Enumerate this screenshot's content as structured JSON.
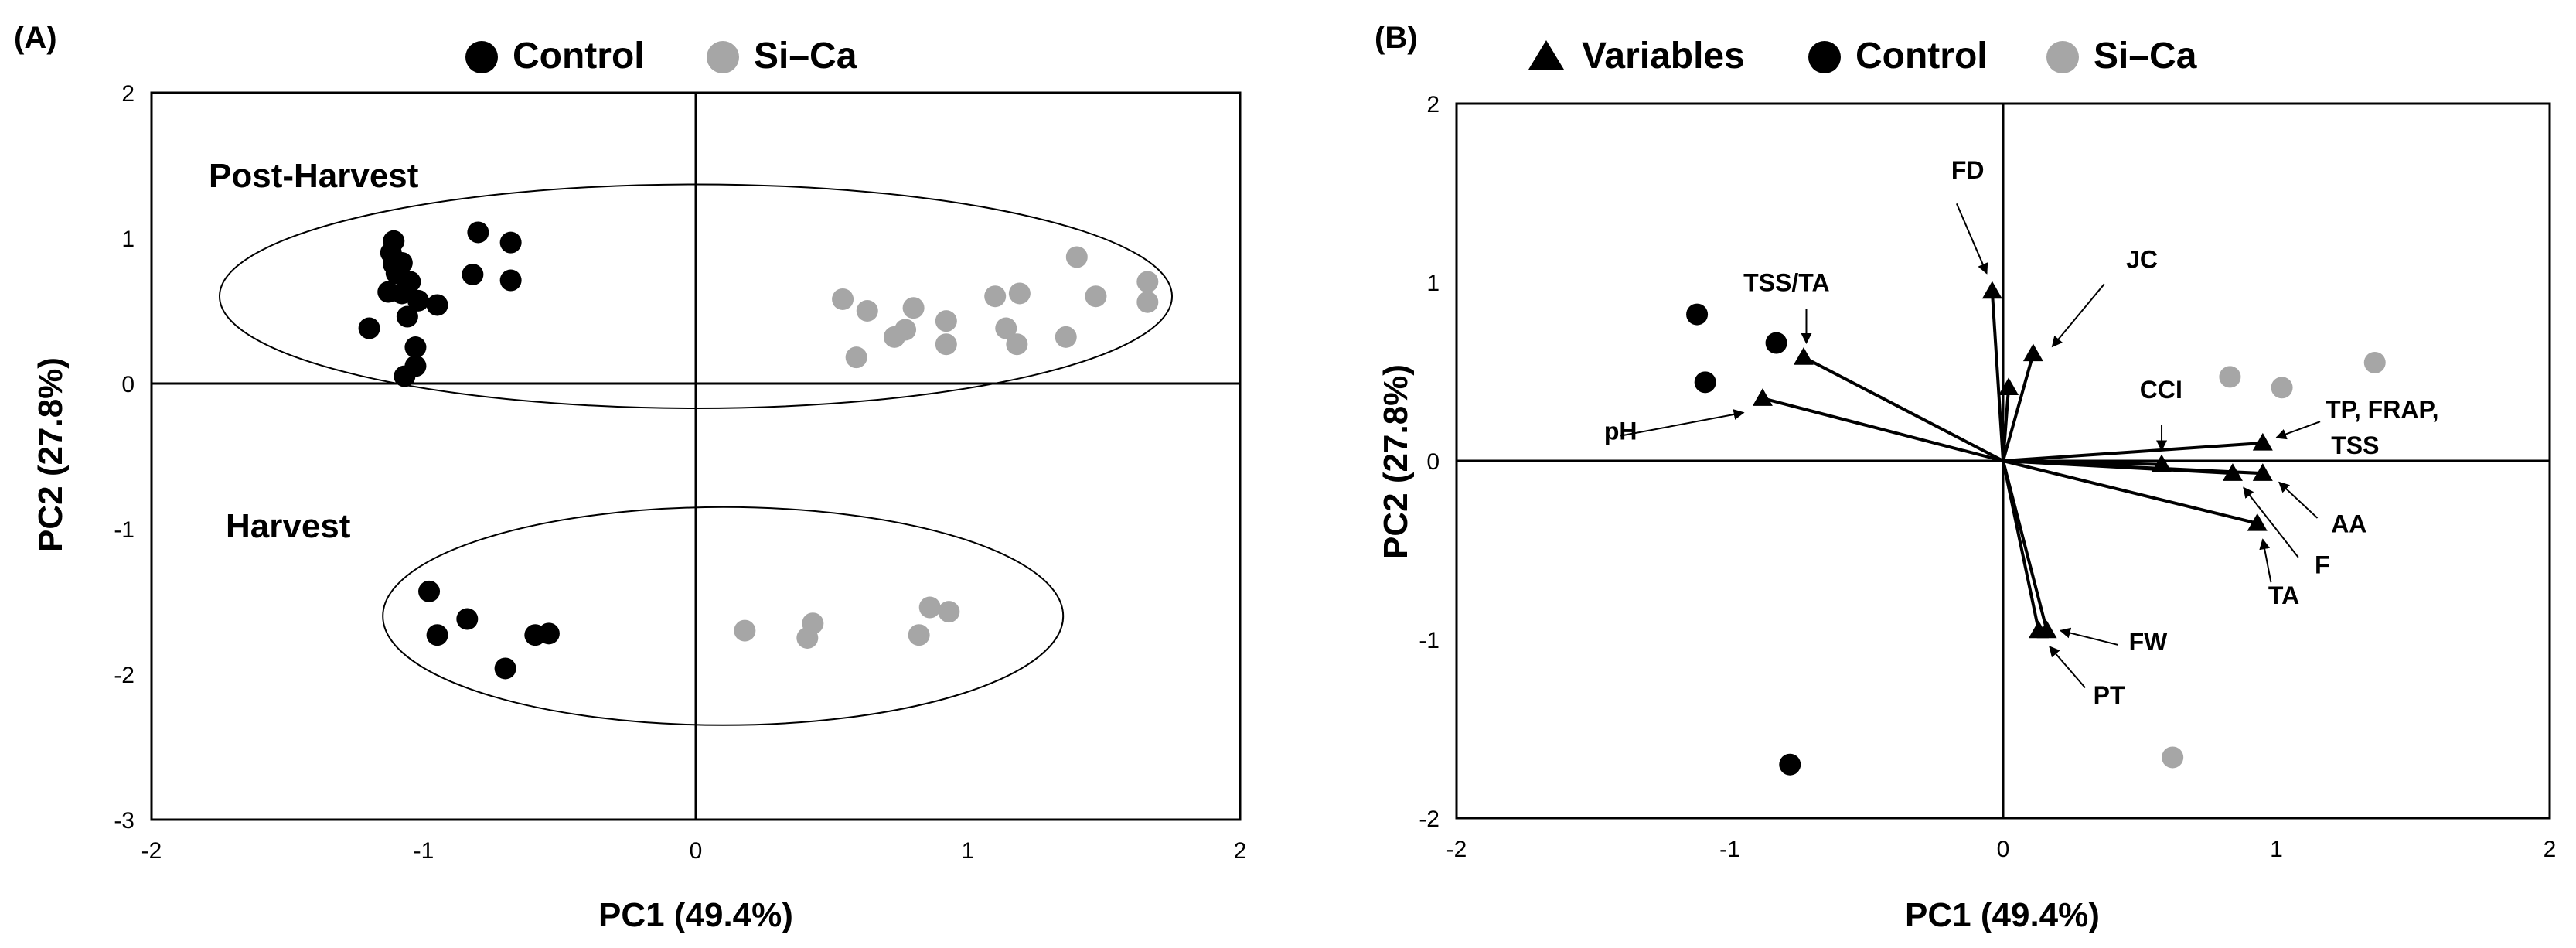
{
  "colors": {
    "control": "#000000",
    "sica": "#a6a6a6",
    "axis": "#000000"
  },
  "chart_data": [
    {
      "type": "scatter",
      "panel_label": "(A)",
      "legend": [
        {
          "marker": "circle",
          "label": "Control",
          "color": "#000000"
        },
        {
          "marker": "circle",
          "label": "Si–Ca",
          "color": "#a6a6a6"
        }
      ],
      "xlabel": "PC1 (49.4%)",
      "ylabel": "PC2 (27.8%)",
      "xlim": [
        -2,
        2
      ],
      "ylim": [
        -3,
        2
      ],
      "xticks": [
        "-2",
        "-1",
        "0",
        "1",
        "2"
      ],
      "yticks": [
        "-3",
        "-2",
        "-1",
        "0",
        "1",
        "2"
      ],
      "groups": [
        {
          "label": "Post-Harvest",
          "ellipse": {
            "cx": 0,
            "cy": 0.6,
            "rx": 1.75,
            "ry": 0.77
          }
        },
        {
          "label": "Harvest",
          "ellipse": {
            "cx": 0.1,
            "cy": -1.6,
            "rx": 1.25,
            "ry": 0.75
          }
        }
      ],
      "series": [
        {
          "name": "Control",
          "color": "#000000",
          "points": [
            [
              -1.11,
              0.98
            ],
            [
              -1.12,
              0.9
            ],
            [
              -1.11,
              0.82
            ],
            [
              -1.08,
              0.83
            ],
            [
              -1.1,
              0.76
            ],
            [
              -1.05,
              0.7
            ],
            [
              -1.13,
              0.63
            ],
            [
              -1.08,
              0.62
            ],
            [
              -1.02,
              0.57
            ],
            [
              -0.95,
              0.54
            ],
            [
              -1.06,
              0.46
            ],
            [
              -1.2,
              0.38
            ],
            [
              -1.03,
              0.25
            ],
            [
              -1.03,
              0.12
            ],
            [
              -1.07,
              0.05
            ],
            [
              -0.8,
              1.04
            ],
            [
              -0.68,
              0.97
            ],
            [
              -0.82,
              0.75
            ],
            [
              -0.68,
              0.71
            ],
            [
              -0.98,
              -1.43
            ],
            [
              -0.84,
              -1.62
            ],
            [
              -0.95,
              -1.73
            ],
            [
              -0.59,
              -1.73
            ],
            [
              -0.54,
              -1.72
            ],
            [
              -0.7,
              -1.96
            ]
          ]
        },
        {
          "name": "Si–Ca",
          "color": "#a6a6a6",
          "points": [
            [
              0.54,
              0.58
            ],
            [
              0.63,
              0.5
            ],
            [
              0.8,
              0.52
            ],
            [
              0.92,
              0.43
            ],
            [
              0.77,
              0.37
            ],
            [
              0.73,
              0.32
            ],
            [
              0.92,
              0.27
            ],
            [
              0.59,
              0.18
            ],
            [
              1.1,
              0.6
            ],
            [
              1.19,
              0.62
            ],
            [
              1.14,
              0.38
            ],
            [
              1.18,
              0.27
            ],
            [
              1.36,
              0.32
            ],
            [
              1.4,
              0.87
            ],
            [
              1.47,
              0.6
            ],
            [
              1.66,
              0.7
            ],
            [
              1.66,
              0.56
            ],
            [
              0.18,
              -1.7
            ],
            [
              0.43,
              -1.65
            ],
            [
              0.41,
              -1.75
            ],
            [
              0.86,
              -1.54
            ],
            [
              0.93,
              -1.57
            ],
            [
              0.82,
              -1.73
            ]
          ]
        }
      ]
    },
    {
      "type": "scatter",
      "panel_label": "(B)",
      "legend": [
        {
          "marker": "triangle",
          "label": "Variables",
          "color": "#000000"
        },
        {
          "marker": "circle",
          "label": "Control",
          "color": "#000000"
        },
        {
          "marker": "circle",
          "label": "Si–Ca",
          "color": "#a6a6a6"
        }
      ],
      "xlabel": "PC1 (49.4%)",
      "ylabel": "PC2 (27.8%)",
      "xlim": [
        -2,
        2
      ],
      "ylim": [
        -2,
        2
      ],
      "xticks": [
        "-2",
        "-1",
        "0",
        "1",
        "2"
      ],
      "yticks": [
        "-2",
        "-1",
        "0",
        "1",
        "2"
      ],
      "series": [
        {
          "name": "Control",
          "color": "#000000",
          "points": [
            [
              -1.12,
              0.82
            ],
            [
              -1.09,
              0.44
            ],
            [
              -0.83,
              0.66
            ],
            [
              -0.78,
              -1.7
            ]
          ]
        },
        {
          "name": "Si–Ca",
          "color": "#a6a6a6",
          "points": [
            [
              0.83,
              0.47
            ],
            [
              1.02,
              0.41
            ],
            [
              1.36,
              0.55
            ],
            [
              0.62,
              -1.66
            ]
          ]
        }
      ],
      "variables": [
        {
          "name": "FD",
          "label": "FD",
          "x": -0.04,
          "y": 0.95,
          "label_x": -0.19,
          "label_y": 1.58,
          "arrow_from": [
            -0.17,
            1.44
          ],
          "arrow_to": [
            -0.06,
            1.05
          ]
        },
        {
          "name": "JC",
          "label": "JC",
          "x": 0.11,
          "y": 0.6,
          "label_x": 0.45,
          "label_y": 1.08,
          "arrow_from": [
            0.37,
            0.99
          ],
          "arrow_to": [
            0.18,
            0.64
          ]
        },
        {
          "name": "JC-inner",
          "label": "",
          "x": 0.02,
          "y": 0.41
        },
        {
          "name": "TSS/TA",
          "label": "TSS/TA",
          "x": -0.73,
          "y": 0.58,
          "label_x": -0.95,
          "label_y": 0.95,
          "arrow_from": [
            -0.72,
            0.85
          ],
          "arrow_to": [
            -0.72,
            0.66
          ]
        },
        {
          "name": "pH",
          "label": "pH",
          "x": -0.88,
          "y": 0.35,
          "label_x": -1.46,
          "label_y": 0.12,
          "arrow_from": [
            -1.4,
            0.14
          ],
          "arrow_to": [
            -0.95,
            0.27
          ]
        },
        {
          "name": "CCI",
          "label": "CCI",
          "x": 0.58,
          "y": -0.02,
          "label_x": 0.5,
          "label_y": 0.35,
          "arrow_from": [
            0.58,
            0.2
          ],
          "arrow_to": [
            0.58,
            0.06
          ]
        },
        {
          "name": "TP, FRAP, TSS",
          "label": "TP, FRAP,",
          "label2": "TSS",
          "x": 0.95,
          "y": 0.1,
          "label_x": 1.18,
          "label_y": 0.24,
          "label2_x": 1.2,
          "label2_y": 0.04,
          "arrow_from": [
            1.16,
            0.22
          ],
          "arrow_to": [
            1.0,
            0.13
          ]
        },
        {
          "name": "AA",
          "label": "AA",
          "x": 0.95,
          "y": -0.07,
          "label_x": 1.2,
          "label_y": -0.4,
          "arrow_from": [
            1.15,
            -0.32
          ],
          "arrow_to": [
            1.01,
            -0.12
          ]
        },
        {
          "name": "F",
          "label": "F",
          "x": 0.84,
          "y": -0.07,
          "label_x": 1.14,
          "label_y": -0.63,
          "arrow_from": [
            1.08,
            -0.54
          ],
          "arrow_to": [
            0.88,
            -0.15
          ]
        },
        {
          "name": "TA",
          "label": "TA",
          "x": 0.93,
          "y": -0.35,
          "label_x": 0.97,
          "label_y": -0.8,
          "arrow_from": [
            0.98,
            -0.68
          ],
          "arrow_to": [
            0.95,
            -0.44
          ]
        },
        {
          "name": "FW",
          "label": "FW",
          "x": 0.16,
          "y": -0.95,
          "label_x": 0.46,
          "label_y": -1.06,
          "arrow_from": [
            0.42,
            -1.03
          ],
          "arrow_to": [
            0.21,
            -0.95
          ]
        },
        {
          "name": "PT",
          "label": "PT",
          "x": 0.13,
          "y": -0.95,
          "label_x": 0.33,
          "label_y": -1.36,
          "arrow_from": [
            0.3,
            -1.27
          ],
          "arrow_to": [
            0.17,
            -1.04
          ]
        }
      ]
    }
  ]
}
